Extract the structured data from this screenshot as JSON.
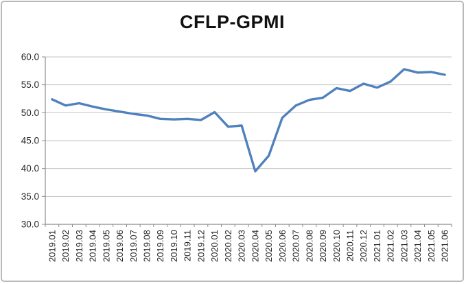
{
  "window": {
    "background": "#ffffff",
    "frame_border_color": "#b9b9b9"
  },
  "chart_data": {
    "type": "line",
    "title": "CFLP-GPMI",
    "x": [
      "2019.01",
      "2019.02",
      "2019.03",
      "2019.04",
      "2019.05",
      "2019.06",
      "2019.07",
      "2019.08",
      "2019.09",
      "2019.10",
      "2019.11",
      "2019.12",
      "2020.01",
      "2020.02",
      "2020.03",
      "2020.04",
      "2020.05",
      "2020.06",
      "2020.07",
      "2020.08",
      "2020.09",
      "2020.10",
      "2020.11",
      "2020.12",
      "2021.01",
      "2021.02",
      "2021.03",
      "2021.04",
      "2021.05",
      "2021.06"
    ],
    "series": [
      {
        "name": "CFLP-GPMI",
        "values": [
          52.4,
          51.3,
          51.7,
          51.1,
          50.6,
          50.2,
          49.8,
          49.5,
          48.9,
          48.8,
          48.9,
          48.7,
          50.1,
          47.5,
          47.7,
          39.5,
          42.3,
          49.1,
          51.3,
          52.3,
          52.7,
          54.4,
          53.9,
          55.2,
          54.5,
          55.6,
          57.8,
          57.2,
          57.3,
          56.8
        ]
      }
    ],
    "xlabel": "",
    "ylabel": "",
    "ylim": [
      30.0,
      60.0
    ],
    "ytick_step": 5.0,
    "ytick_labels": [
      "30.0",
      "35.0",
      "40.0",
      "45.0",
      "50.0",
      "55.0",
      "60.0"
    ],
    "grid": true,
    "legend": "none",
    "line_color": "#4F81BD",
    "gridline_color": "#C3C3C3",
    "axis_color": "#8C8C8C",
    "tick_text_color": "#262626"
  }
}
